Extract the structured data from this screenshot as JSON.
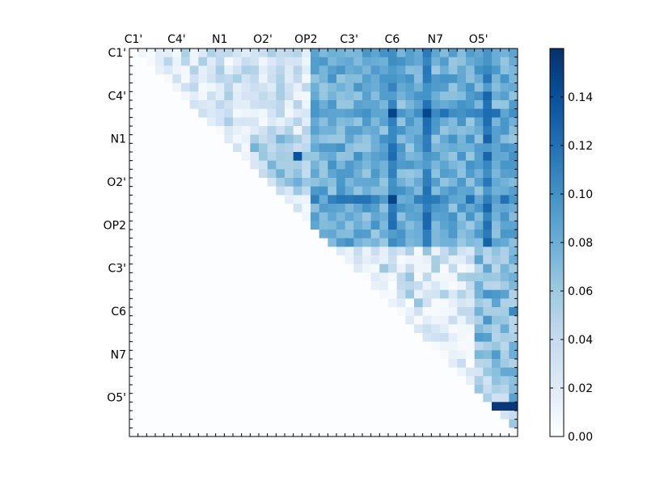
{
  "chart_data": {
    "type": "heatmap",
    "title": "",
    "xlabel": "",
    "ylabel": "",
    "n": 45,
    "x_tick_labels": [
      "C1'",
      "C4'",
      "N1",
      "O2'",
      "OP2",
      "C3'",
      "C6",
      "N7",
      "O5'"
    ],
    "y_tick_labels": [
      "C1'",
      "C4'",
      "N1",
      "O2'",
      "OP2",
      "C3'",
      "C6",
      "N7",
      "O5'"
    ],
    "tick_every": 5,
    "colormap": "Blues",
    "colors": {
      "low": "#f7fbff",
      "mid": "#6baed6",
      "high": "#08306b"
    },
    "colorbar": {
      "range": [
        0.0,
        0.16
      ],
      "tick_values": [
        0.0,
        0.02,
        0.04,
        0.06,
        0.08,
        0.1,
        0.12,
        0.14
      ],
      "tick_labels": [
        "0.00",
        "0.02",
        "0.04",
        "0.06",
        "0.08",
        "0.10",
        "0.12",
        "0.14"
      ]
    },
    "matrix": "upper-triangular",
    "upper_triangle_values_approx": {
      "rows_0_to_15_cols_0_to_20": "0.005-0.05",
      "rows_0_to_22_cols_21_to_44": "0.06-0.11",
      "rows_23_to_44_cols_23_to_44": "0.005-0.10",
      "max_cell": {
        "row": 41,
        "col": 42,
        "value": 0.155
      },
      "col_41_peak": 0.14,
      "cell_12_19": 0.14
    }
  }
}
